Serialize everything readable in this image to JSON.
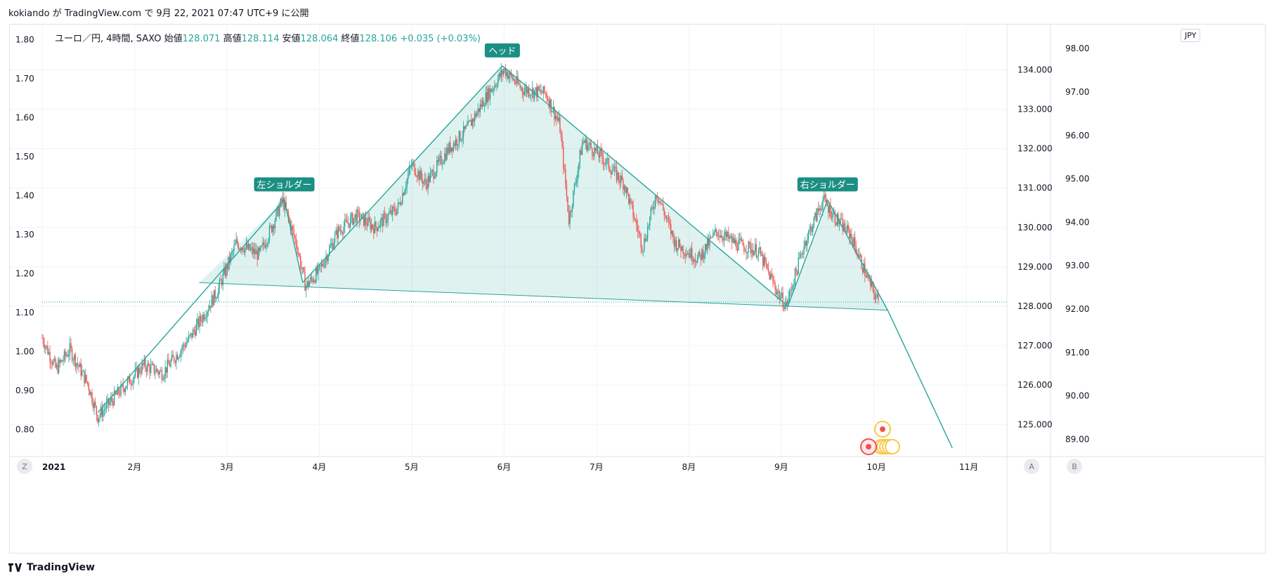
{
  "caption": "kokiando が TradingView.com で 9月 22, 2021 07:47 UTC+9 に公開",
  "legend": {
    "symbol": "ユーロ／円, 4時間, SAXO",
    "open_label": "始値",
    "open": "128.071",
    "high_label": "高値",
    "high": "128.114",
    "low_label": "安値",
    "low": "128.064",
    "close_label": "終値",
    "close": "128.106",
    "change": "+0.035 (+0.03%)"
  },
  "currency_badge": "JPY",
  "chart_data": {
    "type": "candlestick",
    "instrument": "ユーロ／円, 4時間, SAXO",
    "price_axis": {
      "ticks": [
        125.0,
        126.0,
        127.0,
        128.0,
        129.0,
        130.0,
        131.0,
        132.0,
        133.0,
        134.0
      ],
      "labels": [
        "125.000",
        "126.000",
        "127.000",
        "128.000",
        "129.000",
        "130.000",
        "131.000",
        "132.000",
        "133.000",
        "134.000"
      ]
    },
    "left_axis": {
      "ticks": [
        0.8,
        0.9,
        1.0,
        1.1,
        1.2,
        1.3,
        1.4,
        1.5,
        1.6,
        1.7,
        1.8
      ],
      "labels": [
        "0.80",
        "0.90",
        "1.00",
        "1.10",
        "1.20",
        "1.30",
        "1.40",
        "1.50",
        "1.60",
        "1.70",
        "1.80"
      ]
    },
    "right_axis": {
      "ticks": [
        89,
        90,
        91,
        92,
        93,
        94,
        95,
        96,
        97,
        98
      ],
      "labels": [
        "89.00",
        "90.00",
        "91.00",
        "92.00",
        "93.00",
        "94.00",
        "95.00",
        "96.00",
        "97.00",
        "98.00"
      ]
    },
    "time_axis": {
      "ticks": [
        0,
        1,
        2,
        3,
        4,
        5,
        6,
        7,
        8,
        9,
        10
      ],
      "labels": [
        "2021",
        "2月",
        "3月",
        "4月",
        "5月",
        "6月",
        "7月",
        "8月",
        "9月",
        "10月",
        "11月"
      ]
    },
    "price_path": [
      {
        "t": 0.0,
        "p": 127.2
      },
      {
        "t": 0.15,
        "p": 126.4
      },
      {
        "t": 0.3,
        "p": 126.9
      },
      {
        "t": 0.5,
        "p": 126.0
      },
      {
        "t": 0.6,
        "p": 125.2
      },
      {
        "t": 0.75,
        "p": 125.6
      },
      {
        "t": 0.9,
        "p": 126.0
      },
      {
        "t": 1.1,
        "p": 126.5
      },
      {
        "t": 1.3,
        "p": 126.3
      },
      {
        "t": 1.6,
        "p": 127.2
      },
      {
        "t": 1.9,
        "p": 128.4
      },
      {
        "t": 2.1,
        "p": 129.6
      },
      {
        "t": 2.35,
        "p": 129.3
      },
      {
        "t": 2.5,
        "p": 130.1
      },
      {
        "t": 2.6,
        "p": 130.7
      },
      {
        "t": 2.75,
        "p": 129.6
      },
      {
        "t": 2.85,
        "p": 128.5
      },
      {
        "t": 3.0,
        "p": 128.9
      },
      {
        "t": 3.2,
        "p": 129.9
      },
      {
        "t": 3.4,
        "p": 130.3
      },
      {
        "t": 3.6,
        "p": 130.0
      },
      {
        "t": 3.85,
        "p": 130.5
      },
      {
        "t": 4.0,
        "p": 131.6
      },
      {
        "t": 4.15,
        "p": 131.1
      },
      {
        "t": 4.4,
        "p": 132.0
      },
      {
        "t": 4.6,
        "p": 132.5
      },
      {
        "t": 4.8,
        "p": 133.3
      },
      {
        "t": 5.0,
        "p": 134.0
      },
      {
        "t": 5.2,
        "p": 133.5
      },
      {
        "t": 5.45,
        "p": 133.4
      },
      {
        "t": 5.6,
        "p": 132.6
      },
      {
        "t": 5.7,
        "p": 130.2
      },
      {
        "t": 5.85,
        "p": 132.2
      },
      {
        "t": 6.05,
        "p": 131.8
      },
      {
        "t": 6.3,
        "p": 131.1
      },
      {
        "t": 6.5,
        "p": 129.5
      },
      {
        "t": 6.65,
        "p": 130.9
      },
      {
        "t": 6.85,
        "p": 129.6
      },
      {
        "t": 7.1,
        "p": 129.2
      },
      {
        "t": 7.3,
        "p": 129.9
      },
      {
        "t": 7.5,
        "p": 129.6
      },
      {
        "t": 7.75,
        "p": 129.4
      },
      {
        "t": 7.95,
        "p": 128.4
      },
      {
        "t": 8.05,
        "p": 128.0
      },
      {
        "t": 8.25,
        "p": 129.6
      },
      {
        "t": 8.45,
        "p": 130.7
      },
      {
        "t": 8.6,
        "p": 130.2
      },
      {
        "t": 8.75,
        "p": 129.8
      },
      {
        "t": 8.95,
        "p": 128.6
      },
      {
        "t": 9.05,
        "p": 128.1
      }
    ],
    "pattern": {
      "name": "head and shoulders",
      "labels": {
        "left_shoulder": "左ショルダー",
        "head": "ヘッド",
        "right_shoulder": "右ショルダー"
      },
      "points": [
        {
          "t": 0.6,
          "p": 125.3
        },
        {
          "t": 2.62,
          "p": 130.7
        },
        {
          "t": 2.82,
          "p": 128.6
        },
        {
          "t": 4.98,
          "p": 134.1
        },
        {
          "t": 8.07,
          "p": 128.0
        },
        {
          "t": 8.5,
          "p": 130.7
        },
        {
          "t": 9.15,
          "p": 127.9
        },
        {
          "t": 9.85,
          "p": 124.4
        }
      ],
      "neckline": [
        {
          "t": 1.7,
          "p": 128.6
        },
        {
          "t": 9.15,
          "p": 127.9
        }
      ]
    },
    "horizontal_line": 128.106,
    "scale_buttons": [
      "A",
      "B"
    ],
    "reset_button": "Z"
  },
  "colors": {
    "up": "#26a69a",
    "down": "#ef5350",
    "line": "#26a69a",
    "fill": "#26a69a",
    "grid": "#f0f3fa",
    "label_bg": "#1b8f84"
  },
  "footer": {
    "logo": "TradingView"
  }
}
